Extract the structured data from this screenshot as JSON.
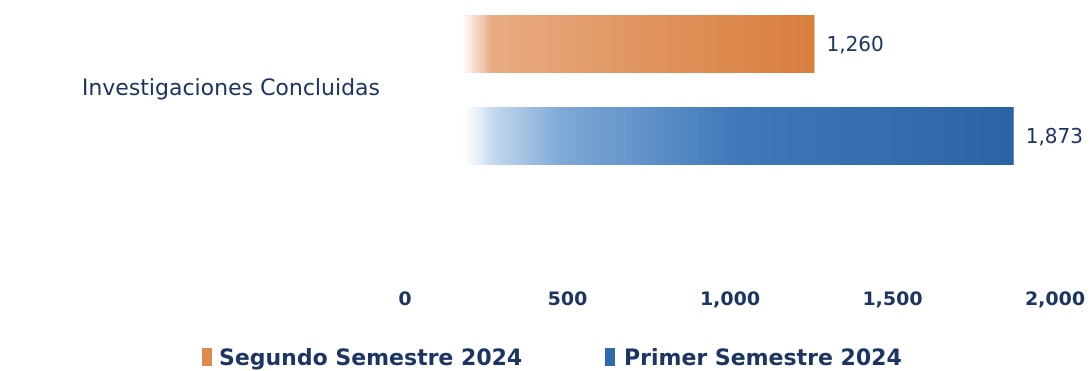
{
  "chart_data": {
    "type": "bar",
    "orientation": "horizontal",
    "categories": [
      "Investigaciones Concluidas"
    ],
    "series": [
      {
        "name": "Segundo Semestre 2024",
        "values": [
          1260
        ],
        "color": "#dd8a4f",
        "value_label": "1,260"
      },
      {
        "name": "Primer Semestre 2024",
        "values": [
          1873
        ],
        "color": "#2f6aad",
        "value_label": "1,873"
      }
    ],
    "xlim": [
      0,
      2000
    ],
    "xticks": [
      0,
      500,
      1000,
      1500,
      2000
    ],
    "xtick_labels": [
      "0",
      "500",
      "1,000",
      "1,500",
      "2,000"
    ],
    "grid": false,
    "legend_position": "bottom"
  }
}
